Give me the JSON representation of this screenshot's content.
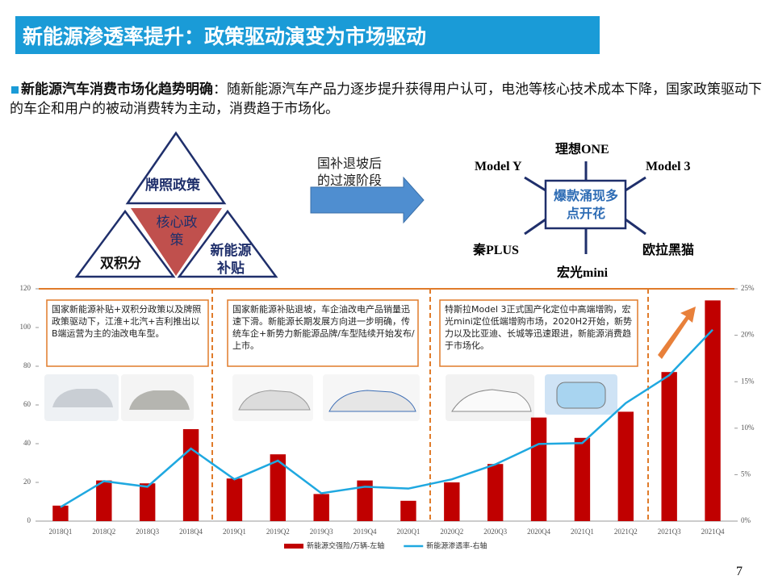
{
  "slide": {
    "title": "新能源渗透率提升：政策驱动演变为市场驱动",
    "bullet_lead": "新能源汽车消费市场化趋势明确",
    "bullet_text": "：随新能源汽车产品力逐步提升获得用户认可，电池等核心技术成本下降，国家政策驱动下的车企和用户的被动消费转为主动，消费趋于市场化。",
    "page_number": "7"
  },
  "diagram": {
    "triangle_top": "牌照政策",
    "triangle_center": "核心政策",
    "triangle_left": "双积分",
    "triangle_right": "新能源补贴",
    "arrow_label": "国补退坡后的过渡阶段",
    "hub": "爆款涌现多点开花",
    "models": [
      "理想ONE",
      "Model Y",
      "Model 3",
      "秦PLUS",
      "欧拉黑猫",
      "宏光mini"
    ]
  },
  "chart_data": {
    "type": "bar",
    "categories": [
      "2018Q1",
      "2018Q2",
      "2018Q3",
      "2018Q4",
      "2019Q1",
      "2019Q2",
      "2019Q3",
      "2019Q4",
      "2020Q1",
      "2020Q2",
      "2020Q3",
      "2020Q4",
      "2021Q1",
      "2021Q2",
      "2021Q3",
      "2021Q4"
    ],
    "series": [
      {
        "name": "新能源交强险/万辆-左轴",
        "color": "#c00000",
        "type": "bar",
        "values": [
          8,
          21,
          19.5,
          47.5,
          22,
          34.5,
          14,
          21,
          10.5,
          20,
          29.5,
          53.5,
          43,
          56.5,
          77,
          114
        ]
      },
      {
        "name": "新能源渗透率-右轴",
        "color": "#1fa8e0",
        "type": "line",
        "axis": "y2",
        "values": [
          1.5,
          4.3,
          3.7,
          7.8,
          4.5,
          6.5,
          3.0,
          3.7,
          3.5,
          4.5,
          6.1,
          8.3,
          8.4,
          12.7,
          15.7,
          20.6
        ]
      }
    ],
    "ylim": [
      0,
      120
    ],
    "yticks": [
      0,
      20,
      40,
      60,
      80,
      100,
      120
    ],
    "y2lim": [
      0,
      25
    ],
    "y2ticks": [
      {
        "value": 0,
        "label": "0%"
      },
      {
        "value": 5,
        "label": "5%"
      },
      {
        "value": 10,
        "label": "10%"
      },
      {
        "value": 15,
        "label": "15%"
      },
      {
        "value": 20,
        "label": "20%"
      },
      {
        "value": 25,
        "label": "25%"
      }
    ],
    "annotations": [
      "国家新能源补贴+双积分政策以及牌照政策驱动下，江淮+北汽+吉利推出以B端运营为主的油改电车型。",
      "国家新能源补贴退坡，车企油改电产品销量迅速下滑。新能源长期发展方向进一步明确，传统车企+新势力新能源品牌/车型陆续开始发布/上市。",
      "特斯拉Model 3正式国产化定位中高端增购，宏光mini定位低端增购市场，2020H2开始，新势力以及比亚迪、长城等迅速跟进，新能源消费趋于市场化。"
    ]
  }
}
